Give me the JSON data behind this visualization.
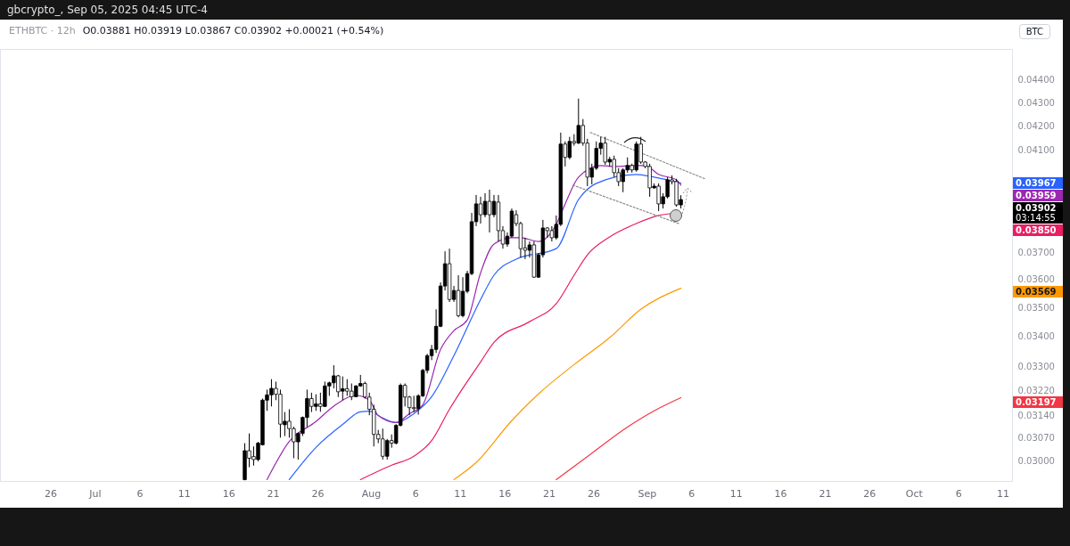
{
  "chart_data": {
    "type": "candlestick",
    "title": "ETHBTC · 12h",
    "subtitle": "O0.03881 H0.03919 L0.03867 C0.03902 +0.00021 (+0.54%)",
    "x": [
      "2025-07-17T20:00",
      "2025-07-18T08:00",
      "2025-07-18T20:00",
      "2025-07-19T08:00",
      "2025-07-19T20:00",
      "2025-07-20T08:00",
      "2025-07-20T20:00",
      "2025-07-21T08:00",
      "2025-07-21T20:00",
      "2025-07-22T08:00",
      "2025-07-22T20:00",
      "2025-07-23T08:00",
      "2025-07-23T20:00",
      "2025-07-24T08:00",
      "2025-07-24T20:00",
      "2025-07-25T08:00",
      "2025-07-25T20:00",
      "2025-07-26T08:00",
      "2025-07-26T20:00",
      "2025-07-27T08:00",
      "2025-07-27T20:00",
      "2025-07-28T08:00",
      "2025-07-28T20:00",
      "2025-07-29T08:00",
      "2025-07-29T20:00",
      "2025-07-30T08:00",
      "2025-07-30T20:00",
      "2025-07-31T08:00",
      "2025-07-31T20:00",
      "2025-08-01T08:00",
      "2025-08-01T20:00",
      "2025-08-02T08:00",
      "2025-08-02T20:00",
      "2025-08-03T08:00",
      "2025-08-03T20:00",
      "2025-08-04T08:00",
      "2025-08-04T20:00",
      "2025-08-05T08:00",
      "2025-08-05T20:00",
      "2025-08-06T08:00",
      "2025-08-06T20:00",
      "2025-08-07T08:00",
      "2025-08-07T20:00",
      "2025-08-08T08:00",
      "2025-08-08T20:00",
      "2025-08-09T08:00",
      "2025-08-09T20:00",
      "2025-08-10T08:00",
      "2025-08-10T20:00",
      "2025-08-11T08:00",
      "2025-08-11T20:00",
      "2025-08-12T08:00",
      "2025-08-12T20:00",
      "2025-08-13T08:00",
      "2025-08-13T20:00",
      "2025-08-14T08:00",
      "2025-08-14T20:00",
      "2025-08-15T08:00",
      "2025-08-15T20:00",
      "2025-08-16T08:00",
      "2025-08-16T20:00",
      "2025-08-17T08:00",
      "2025-08-17T20:00",
      "2025-08-18T08:00",
      "2025-08-18T20:00",
      "2025-08-19T08:00",
      "2025-08-19T20:00",
      "2025-08-20T08:00",
      "2025-08-20T20:00",
      "2025-08-21T08:00",
      "2025-08-21T20:00",
      "2025-08-22T08:00",
      "2025-08-22T20:00",
      "2025-08-23T08:00",
      "2025-08-23T20:00",
      "2025-08-24T08:00",
      "2025-08-24T20:00",
      "2025-08-25T08:00",
      "2025-08-25T20:00",
      "2025-08-26T08:00",
      "2025-08-26T20:00",
      "2025-08-27T08:00",
      "2025-08-27T20:00",
      "2025-08-28T08:00",
      "2025-08-28T20:00",
      "2025-08-29T08:00",
      "2025-08-29T20:00",
      "2025-08-30T08:00",
      "2025-08-30T20:00",
      "2025-08-31T08:00",
      "2025-08-31T20:00",
      "2025-09-01T08:00",
      "2025-09-01T20:00",
      "2025-09-02T08:00",
      "2025-09-02T20:00",
      "2025-09-03T08:00",
      "2025-09-03T20:00",
      "2025-09-04T08:00",
      "2025-09-04T20:00"
    ],
    "ohlc": [
      [
        0.02944,
        0.03054,
        0.02942,
        0.03031
      ],
      [
        0.03031,
        0.03084,
        0.02981,
        0.03008
      ],
      [
        0.03013,
        0.03044,
        0.02986,
        0.03004
      ],
      [
        0.03004,
        0.03058,
        0.02999,
        0.03054
      ],
      [
        0.03049,
        0.03194,
        0.03047,
        0.03189
      ],
      [
        0.03189,
        0.03223,
        0.03155,
        0.03206
      ],
      [
        0.03206,
        0.03257,
        0.03169,
        0.03227
      ],
      [
        0.03227,
        0.03249,
        0.03189,
        0.03208
      ],
      [
        0.03208,
        0.03223,
        0.03071,
        0.03113
      ],
      [
        0.03111,
        0.03151,
        0.03076,
        0.03122
      ],
      [
        0.03122,
        0.0316,
        0.03071,
        0.03099
      ],
      [
        0.03099,
        0.03105,
        0.03008,
        0.03058
      ],
      [
        0.03058,
        0.03087,
        0.03004,
        0.03084
      ],
      [
        0.03084,
        0.03137,
        0.03076,
        0.03134
      ],
      [
        0.03134,
        0.03223,
        0.03104,
        0.03194
      ],
      [
        0.03194,
        0.03213,
        0.03151,
        0.03169
      ],
      [
        0.03169,
        0.03208,
        0.03155,
        0.03177
      ],
      [
        0.03177,
        0.03213,
        0.03152,
        0.03169
      ],
      [
        0.03169,
        0.03249,
        0.03167,
        0.03235
      ],
      [
        0.03235,
        0.03249,
        0.03203,
        0.03245
      ],
      [
        0.03245,
        0.03303,
        0.03227,
        0.03268
      ],
      [
        0.03268,
        0.03271,
        0.03199,
        0.03216
      ],
      [
        0.03218,
        0.03266,
        0.03189,
        0.03226
      ],
      [
        0.03226,
        0.03257,
        0.03203,
        0.03218
      ],
      [
        0.03218,
        0.03243,
        0.03189,
        0.032
      ],
      [
        0.032,
        0.03237,
        0.03199,
        0.03235
      ],
      [
        0.03235,
        0.03271,
        0.03232,
        0.03243
      ],
      [
        0.03243,
        0.03249,
        0.03194,
        0.03199
      ],
      [
        0.03199,
        0.03213,
        0.03141,
        0.0316
      ],
      [
        0.0316,
        0.03174,
        0.03044,
        0.03081
      ],
      [
        0.03081,
        0.03095,
        0.03054,
        0.03067
      ],
      [
        0.03067,
        0.03099,
        0.03004,
        0.03014
      ],
      [
        0.03014,
        0.03067,
        0.03004,
        0.03062
      ],
      [
        0.03062,
        0.03081,
        0.0304,
        0.03054
      ],
      [
        0.03054,
        0.03113,
        0.0305,
        0.03109
      ],
      [
        0.03109,
        0.03243,
        0.03106,
        0.03237
      ],
      [
        0.03237,
        0.03243,
        0.03169,
        0.03199
      ],
      [
        0.03199,
        0.03203,
        0.03141,
        0.03165
      ],
      [
        0.03165,
        0.03203,
        0.03151,
        0.03162
      ],
      [
        0.03162,
        0.03208,
        0.03143,
        0.03203
      ],
      [
        0.03203,
        0.03291,
        0.03199,
        0.03286
      ],
      [
        0.03286,
        0.03341,
        0.03276,
        0.03335
      ],
      [
        0.03335,
        0.03371,
        0.0332,
        0.03356
      ],
      [
        0.03356,
        0.03494,
        0.03344,
        0.03435
      ],
      [
        0.03435,
        0.0359,
        0.03432,
        0.03577
      ],
      [
        0.03577,
        0.03704,
        0.03561,
        0.03658
      ],
      [
        0.03658,
        0.03714,
        0.0352,
        0.03529
      ],
      [
        0.03529,
        0.03577,
        0.0352,
        0.03561
      ],
      [
        0.03561,
        0.03616,
        0.03466,
        0.03472
      ],
      [
        0.03472,
        0.03609,
        0.03466,
        0.03558
      ],
      [
        0.03558,
        0.03632,
        0.03551,
        0.03622
      ],
      [
        0.03622,
        0.0385,
        0.03616,
        0.03816
      ],
      [
        0.03816,
        0.0392,
        0.03799,
        0.03885
      ],
      [
        0.03885,
        0.03913,
        0.03809,
        0.03843
      ],
      [
        0.03843,
        0.03927,
        0.03833,
        0.03895
      ],
      [
        0.03895,
        0.03941,
        0.03775,
        0.03843
      ],
      [
        0.03843,
        0.0392,
        0.03833,
        0.03895
      ],
      [
        0.03892,
        0.0392,
        0.03741,
        0.03782
      ],
      [
        0.03782,
        0.03799,
        0.03714,
        0.03731
      ],
      [
        0.03731,
        0.03775,
        0.03721,
        0.03761
      ],
      [
        0.03761,
        0.03867,
        0.03755,
        0.03857
      ],
      [
        0.03843,
        0.0386,
        0.03799,
        0.03809
      ],
      [
        0.03809,
        0.03816,
        0.03681,
        0.03714
      ],
      [
        0.03717,
        0.03755,
        0.03675,
        0.03708
      ],
      [
        0.03708,
        0.03741,
        0.03681,
        0.03728
      ],
      [
        0.03728,
        0.03741,
        0.03606,
        0.03609
      ],
      [
        0.03609,
        0.03698,
        0.03606,
        0.03691
      ],
      [
        0.03691,
        0.03823,
        0.03681,
        0.03792
      ],
      [
        0.03792,
        0.03795,
        0.03755,
        0.03782
      ],
      [
        0.03782,
        0.03799,
        0.03741,
        0.03755
      ],
      [
        0.03755,
        0.0384,
        0.03748,
        0.03806
      ],
      [
        0.03806,
        0.04174,
        0.03799,
        0.04126
      ],
      [
        0.04126,
        0.04137,
        0.04034,
        0.04071
      ],
      [
        0.04071,
        0.04156,
        0.04063,
        0.04137
      ],
      [
        0.04137,
        0.04167,
        0.04119,
        0.0413
      ],
      [
        0.0413,
        0.04319,
        0.04126,
        0.04204
      ],
      [
        0.04204,
        0.04231,
        0.04119,
        0.0413
      ],
      [
        0.0413,
        0.04148,
        0.03955,
        0.03991
      ],
      [
        0.03991,
        0.04045,
        0.03962,
        0.04027
      ],
      [
        0.04027,
        0.04137,
        0.0402,
        0.04108
      ],
      [
        0.04108,
        0.04156,
        0.04082,
        0.0413
      ],
      [
        0.0413,
        0.04156,
        0.04041,
        0.04052
      ],
      [
        0.04052,
        0.04074,
        0.04034,
        0.04063
      ],
      [
        0.04063,
        0.04078,
        0.03991,
        0.04009
      ],
      [
        0.04009,
        0.04027,
        0.03955,
        0.03973
      ],
      [
        0.03973,
        0.04027,
        0.03931,
        0.0402
      ],
      [
        0.0402,
        0.04071,
        0.04009,
        0.04038
      ],
      [
        0.04038,
        0.04045,
        0.04009,
        0.0402
      ],
      [
        0.0402,
        0.04137,
        0.04013,
        0.04126
      ],
      [
        0.04126,
        0.04156,
        0.04045,
        0.04052
      ],
      [
        0.04052,
        0.04056,
        0.04027,
        0.04034
      ],
      [
        0.04034,
        0.04045,
        0.03913,
        0.03948
      ],
      [
        0.03948,
        0.03966,
        0.03945,
        0.03955
      ],
      [
        0.03955,
        0.03966,
        0.03857,
        0.03885
      ],
      [
        0.03885,
        0.03927,
        0.03867,
        0.03913
      ],
      [
        0.03913,
        0.03991,
        0.03906,
        0.0398
      ],
      [
        0.0398,
        0.03998,
        0.03962,
        0.03973
      ],
      [
        0.03973,
        0.03984,
        0.03874,
        0.03881
      ],
      [
        0.03881,
        0.03919,
        0.03867,
        0.03902
      ]
    ],
    "color": "#000000",
    "colors": [
      "#000000",
      "#ffffff",
      "#ffffff",
      "#000000",
      "#000000",
      "#000000",
      "#000000",
      "#ffffff",
      "#ffffff",
      "#000000",
      "#ffffff",
      "#ffffff",
      "#000000",
      "#000000",
      "#000000",
      "#ffffff",
      "#000000",
      "#ffffff",
      "#000000",
      "#000000",
      "#000000",
      "#ffffff",
      "#000000",
      "#ffffff",
      "#ffffff",
      "#000000",
      "#000000",
      "#ffffff",
      "#ffffff",
      "#ffffff",
      "#ffffff",
      "#ffffff",
      "#000000",
      "#ffffff",
      "#000000",
      "#000000",
      "#ffffff",
      "#ffffff",
      "#ffffff",
      "#000000",
      "#000000",
      "#000000",
      "#000000",
      "#000000",
      "#000000",
      "#000000",
      "#ffffff",
      "#000000",
      "#ffffff",
      "#000000",
      "#000000",
      "#000000",
      "#000000",
      "#ffffff",
      "#000000",
      "#ffffff",
      "#000000",
      "#ffffff",
      "#ffffff",
      "#000000",
      "#000000",
      "#ffffff",
      "#ffffff",
      "#ffffff",
      "#000000",
      "#ffffff",
      "#000000",
      "#000000",
      "#ffffff",
      "#ffffff",
      "#000000",
      "#000000",
      "#ffffff",
      "#000000",
      "#ffffff",
      "#000000",
      "#ffffff",
      "#ffffff",
      "#000000",
      "#000000",
      "#000000",
      "#ffffff",
      "#000000",
      "#ffffff",
      "#ffffff",
      "#000000",
      "#000000",
      "#ffffff",
      "#000000",
      "#ffffff",
      "#ffffff",
      "#ffffff",
      "#000000",
      "#ffffff",
      "#000000",
      "#000000",
      "#ffffff",
      "#ffffff",
      "#000000"
    ],
    "series": [
      {
        "type": "line",
        "color": "#2962ff",
        "x": [
          "2025-07-22T20:00",
          "2025-07-25T20:00",
          "2025-07-28T20:00",
          "2025-07-30T20:00",
          "2025-07-31T20:00",
          "2025-08-02T08:00",
          "2025-08-03T20:00",
          "2025-08-05T20:00",
          "2025-08-07T20:00",
          "2025-08-10T08:00",
          "2025-08-13T08:00",
          "2025-08-14T20:00",
          "2025-08-17T08:00",
          "2025-08-21T20:00",
          "2025-08-24T08:00",
          "2025-08-26T08:00",
          "2025-08-30T20:00",
          "2025-09-01T20:00",
          "2025-09-03T08:00",
          "2025-09-04T20:00"
        ],
        "values": [
          0.02944,
          0.03041,
          0.03112,
          0.03152,
          0.03154,
          0.03132,
          0.03118,
          0.03146,
          0.032,
          0.03335,
          0.03529,
          0.03616,
          0.03675,
          0.03714,
          0.03902,
          0.03966,
          0.04002,
          0.03991,
          0.0398,
          0.03967
        ]
      },
      {
        "type": "line",
        "color": "#9c27b0",
        "x": [
          "2025-07-20T08:00",
          "2025-07-22T20:00",
          "2025-07-25T20:00",
          "2025-07-27T20:00",
          "2025-07-30T08:00",
          "2025-07-31T20:00",
          "2025-08-01T20:00",
          "2025-08-03T20:00",
          "2025-08-05T08:00",
          "2025-08-06T20:00",
          "2025-08-08T20:00",
          "2025-08-10T08:00",
          "2025-08-11T20:00",
          "2025-08-13T08:00",
          "2025-08-14T20:00",
          "2025-08-16T20:00",
          "2025-08-17T20:00",
          "2025-08-19T20:00",
          "2025-08-21T20:00",
          "2025-08-22T20:00",
          "2025-08-24T08:00",
          "2025-08-26T20:00",
          "2025-08-28T08:00",
          "2025-08-30T20:00",
          "2025-08-31T20:00",
          "2025-09-02T08:00",
          "2025-09-04T08:00",
          "2025-09-04T20:00"
        ],
        "values": [
          0.02944,
          0.03059,
          0.03121,
          0.0317,
          0.03204,
          0.03189,
          0.0314,
          0.03118,
          0.03146,
          0.03174,
          0.03356,
          0.0342,
          0.03457,
          0.03625,
          0.03731,
          0.03755,
          0.03755,
          0.03741,
          0.03806,
          0.03885,
          0.03991,
          0.04038,
          0.04034,
          0.04038,
          0.04038,
          0.04002,
          0.0398,
          0.03959
        ]
      },
      {
        "type": "line",
        "color": "#e91e63",
        "x": [
          "2025-07-30T20:00",
          "2025-08-03T08:00",
          "2025-08-05T20:00",
          "2025-08-07T20:00",
          "2025-08-09T20:00",
          "2025-08-13T08:00",
          "2025-08-14T20:00",
          "2025-08-18T20:00",
          "2025-08-21T20:00",
          "2025-08-23T20:00",
          "2025-08-25T08:00",
          "2025-08-27T20:00",
          "2025-08-30T20:00",
          "2025-09-02T08:00",
          "2025-09-04T20:00"
        ],
        "values": [
          0.02944,
          0.02987,
          0.03014,
          0.03062,
          0.0316,
          0.03314,
          0.0338,
          0.03451,
          0.03514,
          0.03616,
          0.03691,
          0.03758,
          0.03809,
          0.0384,
          0.0385
        ]
      },
      {
        "type": "line",
        "color": "#ff9800",
        "x": [
          "2025-08-10T08:00",
          "2025-08-12T20:00",
          "2025-08-16T20:00",
          "2025-08-19T20:00",
          "2025-08-23T20:00",
          "2025-08-27T20:00",
          "2025-08-31T08:00",
          "2025-09-04T20:00"
        ],
        "values": [
          0.02944,
          0.02995,
          0.03124,
          0.03209,
          0.03305,
          0.03396,
          0.03494,
          0.03569
        ]
      },
      {
        "type": "line",
        "color": "#f23645",
        "x": [
          "2025-08-21T20:00",
          "2025-08-24T20:00",
          "2025-08-29T20:00",
          "2025-09-01T20:00",
          "2025-09-04T20:00"
        ],
        "values": [
          0.02944,
          0.03003,
          0.03104,
          0.03155,
          0.03197
        ]
      },
      {
        "type": "line",
        "color": "#888888",
        "line_style": "dotted",
        "x": [
          "2025-08-25T16:00",
          "2025-09-07T14:00"
        ],
        "values": [
          0.04174,
          0.03984
        ]
      },
      {
        "type": "line",
        "color": "#888888",
        "line_style": "dotted",
        "x": [
          "2025-08-23T17:00",
          "2025-09-04T14:00"
        ],
        "values": [
          0.03959,
          0.03809
        ]
      }
    ],
    "xlim": [
      "2025-06-20T20:00",
      "2025-10-11T13:00"
    ],
    "xticks": [
      {
        "value": "2025-06-26",
        "label": "26"
      },
      {
        "value": "2025-07-01",
        "label": "Jul"
      },
      {
        "value": "2025-07-06",
        "label": "6"
      },
      {
        "value": "2025-07-11",
        "label": "11"
      },
      {
        "value": "2025-07-16",
        "label": "16"
      },
      {
        "value": "2025-07-21",
        "label": "21"
      },
      {
        "value": "2025-07-26",
        "label": "26"
      },
      {
        "value": "2025-08-01",
        "label": "Aug"
      },
      {
        "value": "2025-08-06",
        "label": "6"
      },
      {
        "value": "2025-08-11",
        "label": "11"
      },
      {
        "value": "2025-08-16",
        "label": "16"
      },
      {
        "value": "2025-08-21",
        "label": "21"
      },
      {
        "value": "2025-08-26",
        "label": "26"
      },
      {
        "value": "2025-09-01",
        "label": "Sep"
      },
      {
        "value": "2025-09-06",
        "label": "6"
      },
      {
        "value": "2025-09-11",
        "label": "11"
      },
      {
        "value": "2025-09-16",
        "label": "16"
      },
      {
        "value": "2025-09-21",
        "label": "21"
      },
      {
        "value": "2025-09-26",
        "label": "26"
      },
      {
        "value": "2025-10-01",
        "label": "Oct"
      },
      {
        "value": "2025-10-06",
        "label": "6"
      },
      {
        "value": "2025-10-11",
        "label": "11"
      }
    ],
    "ylim": [
      0.0294,
      0.0454
    ],
    "yticks": [
      {
        "value": 0.03,
        "label": "0.03000"
      },
      {
        "value": 0.0307,
        "label": "0.03070"
      },
      {
        "value": 0.0314,
        "label": "0.03140"
      },
      {
        "value": 0.0322,
        "label": "0.03220"
      },
      {
        "value": 0.033,
        "label": "0.03300"
      },
      {
        "value": 0.034,
        "label": "0.03400"
      },
      {
        "value": 0.035,
        "label": "0.03500"
      },
      {
        "value": 0.036,
        "label": "0.03600"
      },
      {
        "value": 0.037,
        "label": "0.03700"
      },
      {
        "value": 0.041,
        "label": "0.04100"
      },
      {
        "value": 0.042,
        "label": "0.04200"
      },
      {
        "value": 0.043,
        "label": "0.04300"
      },
      {
        "value": 0.044,
        "label": "0.04400"
      }
    ],
    "log": true,
    "annotations": [
      "gbcrypto_, Sep 05, 2025 04:45 UTC-4",
      "BTC",
      "0.03967",
      "0.03959",
      "0.03850",
      "0.03569",
      "0.03197",
      "0.03902",
      "03:14:55"
    ]
  }
}
